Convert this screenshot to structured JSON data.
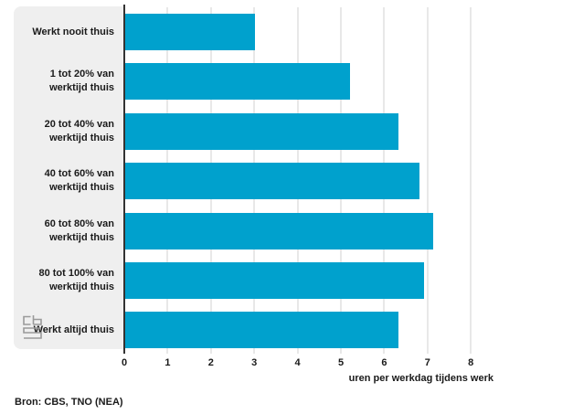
{
  "chart_data": {
    "type": "bar",
    "orientation": "horizontal",
    "categories": [
      "Werkt nooit thuis",
      "1 tot 20% van werktijd thuis",
      "20 tot 40% van werktijd thuis",
      "40 tot 60% van werktijd thuis",
      "60 tot 80% van werktijd thuis",
      "80 tot 100% van werktijd thuis",
      "Werkt altijd thuis"
    ],
    "category_lines": [
      [
        "Werkt nooit thuis"
      ],
      [
        "1 tot 20% van",
        "werktijd thuis"
      ],
      [
        "20 tot 40% van",
        "werktijd thuis"
      ],
      [
        "40 tot 60% van",
        "werktijd thuis"
      ],
      [
        "60 tot 80% van",
        "werktijd thuis"
      ],
      [
        "80 tot 100% van",
        "werktijd thuis"
      ],
      [
        "Werkt altijd thuis"
      ]
    ],
    "values": [
      3,
      5.2,
      6.3,
      6.8,
      7.1,
      6.9,
      6.3
    ],
    "title": "",
    "xlabel": "uren per werkdag tijdens werk",
    "ylabel": "",
    "xlim": [
      0,
      8
    ],
    "xticks": [
      0,
      1,
      2,
      3,
      4,
      5,
      6,
      7,
      8
    ],
    "grid": true,
    "legend": false
  },
  "source": "Bron: CBS, TNO (NEA)",
  "logo": {
    "name": "cbs-logo"
  },
  "colors": {
    "bar": "#00a1cd",
    "panel": "#efefef",
    "grid": "#e8e8e8",
    "axis": "#333333",
    "text": "#1a1a1a",
    "logo": "#9a9a9a"
  }
}
